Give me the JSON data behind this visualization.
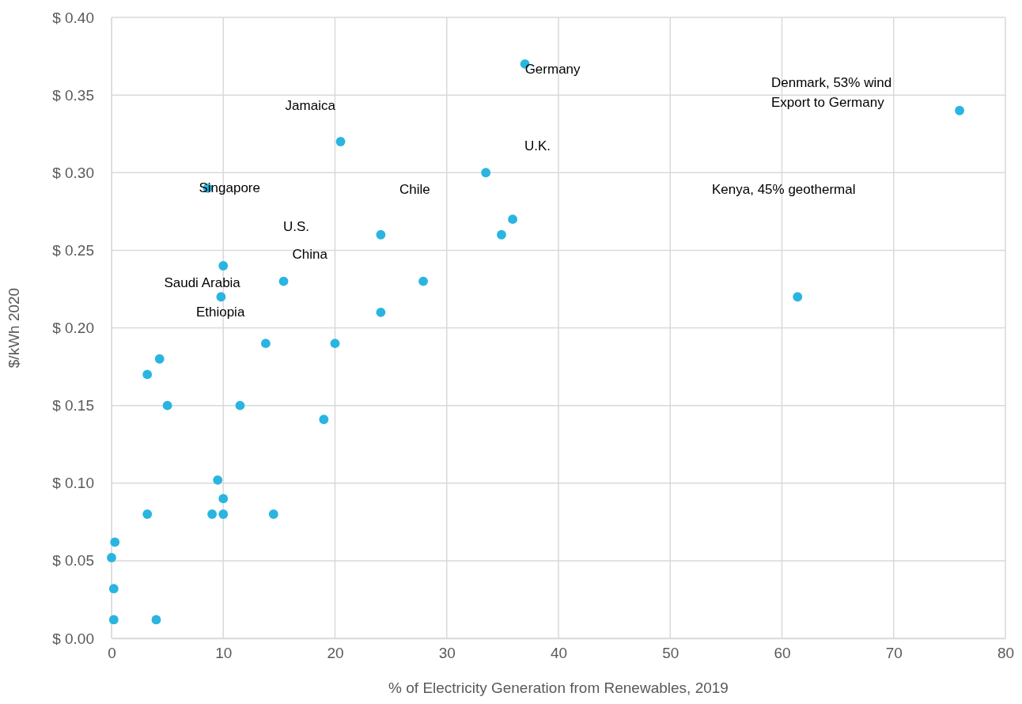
{
  "chart_data": {
    "type": "scatter",
    "xlabel": "% of Electricity Generation from Renewables, 2019",
    "ylabel": "$/kWh 2020",
    "x": [
      37,
      75.9,
      20.5,
      33.5,
      8.6,
      35.9,
      24.1,
      34.9,
      10,
      15.4,
      27.9,
      61.4,
      9.8,
      24.1,
      13.8,
      20,
      4.3,
      3.2,
      5,
      11.5,
      19,
      9.5,
      10,
      3.2,
      9,
      10,
      14.5,
      0.3,
      0,
      0.2,
      0.2,
      4
    ],
    "series": [
      {
        "color": "#29b5e0",
        "values": [
          0.37,
          0.34,
          0.32,
          0.3,
          0.29,
          0.27,
          0.26,
          0.26,
          0.24,
          0.23,
          0.23,
          0.22,
          0.22,
          0.21,
          0.19,
          0.19,
          0.18,
          0.17,
          0.15,
          0.15,
          0.141,
          0.102,
          0.09,
          0.08,
          0.08,
          0.08,
          0.08,
          0.062,
          0.052,
          0.032,
          0.012,
          0.012
        ]
      }
    ],
    "xlim": [
      0,
      80
    ],
    "xticks": [
      0,
      10,
      20,
      30,
      40,
      50,
      60,
      70,
      80
    ],
    "ylim": [
      0,
      0.4
    ],
    "yticks": [
      {
        "value": 0,
        "label": "$ 0.00"
      },
      {
        "value": 0.05,
        "label": "$ 0.05"
      },
      {
        "value": 0.1,
        "label": "$ 0.10"
      },
      {
        "value": 0.15,
        "label": "$ 0.15"
      },
      {
        "value": 0.2,
        "label": "$ 0.20"
      },
      {
        "value": 0.25,
        "label": "$ 0.25"
      },
      {
        "value": 0.3,
        "label": "$ 0.30"
      },
      {
        "value": 0.35,
        "label": "$ 0.35"
      },
      {
        "value": 0.4,
        "label": "$ 0.40"
      }
    ],
    "grid": true,
    "marker": "circle",
    "annotations": [
      {
        "text": "Germany",
        "x": 37,
        "y": 0.37
      },
      "Denmark, 53% wind\nExport to Germany",
      {
        "text": "Jamaica",
        "x": 20.5,
        "y": 0.32
      },
      "U.K.",
      {
        "text": "Singapore",
        "x": 8.6,
        "y": 0.29
      },
      "Chile",
      "Kenya, 45% geothermal",
      "U.S.",
      {
        "text": "China",
        "x": 15.4,
        "y": 0.23
      },
      {
        "text": "Saudi Arabia",
        "x": 9.8,
        "y": 0.22
      },
      {
        "text": "Ethiopia",
        "x": 13.8,
        "y": 0.19
      }
    ]
  }
}
